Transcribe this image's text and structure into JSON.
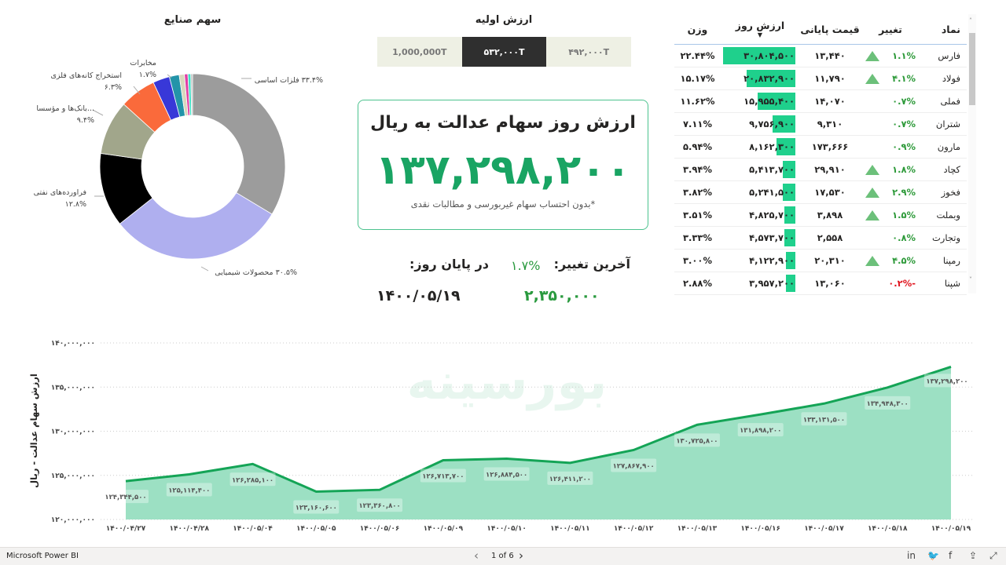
{
  "pie": {
    "title": "سهم صنایع",
    "labels": [
      {
        "name": "فلزات اساسی",
        "pct": "۳۳.۴%"
      },
      {
        "name": "محصولات شیمیایی",
        "pct": "۳۰.۵%"
      },
      {
        "name": "فراورده‌های نفتی",
        "pct": "۱۲.۸%"
      },
      {
        "name": "...بانک‌ها و مؤسسا",
        "pct": "۹.۴%"
      },
      {
        "name": "استخراج کانه‌های فلزی",
        "pct": "۶.۳%"
      },
      {
        "name": "مخابرات",
        "pct": "۱.۷%"
      }
    ]
  },
  "initial": {
    "title": "ارزش اولیه",
    "options": [
      "1,000,000T",
      "۵۳۲,۰۰۰T",
      "۴۹۲,۰۰۰T"
    ],
    "selected": 1
  },
  "card": {
    "title": "ارزش روز سهام عدالت به ریال",
    "value": "۱۳۷,۲۹۸,۲۰۰",
    "note": "*بدون احتساب سهام غیربورسی و مطالبات نقدی"
  },
  "kpi": {
    "last_change_label": "آخرین تغییر:",
    "last_change": "۱.۷%",
    "change_value": "۲,۳۵۰,۰۰۰",
    "end_of_day_label": "در پایان روز:",
    "date": "۱۴۰۰/۰۵/۱۹"
  },
  "table": {
    "headers": [
      "نماد",
      "تغییر",
      "قیمت پایانی",
      "ارزش روز",
      "وزن"
    ],
    "sort_column": "ارزش روز",
    "rows": [
      {
        "symbol": "فارس",
        "change": "۱.۱%",
        "up_arrow": true,
        "dir": "up",
        "price": "۱۳,۴۴۰",
        "value": "۳۰,۸۰۴,۵۰۰",
        "value_num": 30804500,
        "weight": "۲۲.۴۴%"
      },
      {
        "symbol": "فولاد",
        "change": "۴.۱%",
        "up_arrow": true,
        "dir": "up",
        "price": "۱۱,۷۹۰",
        "value": "۲۰,۸۳۲,۹۰۰",
        "value_num": 20832900,
        "weight": "۱۵.۱۷%"
      },
      {
        "symbol": "فملی",
        "change": "۰.۷%",
        "up_arrow": false,
        "dir": "up",
        "price": "۱۴,۰۷۰",
        "value": "۱۵,۹۵۵,۴۰۰",
        "value_num": 15955400,
        "weight": "۱۱.۶۲%"
      },
      {
        "symbol": "شتران",
        "change": "۰.۷%",
        "up_arrow": false,
        "dir": "up",
        "price": "۹,۳۱۰",
        "value": "۹,۷۵۶,۹۰۰",
        "value_num": 9756900,
        "weight": "۷.۱۱%"
      },
      {
        "symbol": "مارون",
        "change": "۰.۹%",
        "up_arrow": false,
        "dir": "up",
        "price": "۱۷۳,۶۶۶",
        "value": "۸,۱۶۲,۳۰۰",
        "value_num": 8162300,
        "weight": "۵.۹۴%"
      },
      {
        "symbol": "کچاد",
        "change": "۱.۸%",
        "up_arrow": true,
        "dir": "up",
        "price": "۲۹,۹۱۰",
        "value": "۵,۴۱۳,۷۰۰",
        "value_num": 5413700,
        "weight": "۳.۹۴%"
      },
      {
        "symbol": "فخوز",
        "change": "۲.۹%",
        "up_arrow": true,
        "dir": "up",
        "price": "۱۷,۵۳۰",
        "value": "۵,۲۴۱,۵۰۰",
        "value_num": 5241500,
        "weight": "۳.۸۲%"
      },
      {
        "symbol": "وبملت",
        "change": "۱.۵%",
        "up_arrow": true,
        "dir": "up",
        "price": "۳,۸۹۸",
        "value": "۴,۸۲۵,۷۰۰",
        "value_num": 4825700,
        "weight": "۳.۵۱%"
      },
      {
        "symbol": "وتجارت",
        "change": "۰.۸%",
        "up_arrow": false,
        "dir": "up",
        "price": "۲,۵۵۸",
        "value": "۴,۵۷۳,۷۰۰",
        "value_num": 4573700,
        "weight": "۳.۳۳%"
      },
      {
        "symbol": "رمپنا",
        "change": "۴.۵%",
        "up_arrow": true,
        "dir": "up",
        "price": "۲۰,۳۱۰",
        "value": "۴,۱۲۲,۹۰۰",
        "value_num": 4122900,
        "weight": "۳.۰۰%"
      },
      {
        "symbol": "شپنا",
        "change": "-۰.۲%",
        "up_arrow": false,
        "dir": "down",
        "price": "۱۳,۰۶۰",
        "value": "۳,۹۵۷,۲۰۰",
        "value_num": 3957200,
        "weight": "۲.۸۸%"
      }
    ]
  },
  "colors": {
    "accent": "#19a463",
    "area": "#9ce0c3",
    "line": "#14a456",
    "bar": "#1fd08c"
  },
  "watermark": "بورسینه",
  "chart_data": [
    {
      "type": "pie",
      "donut": true,
      "values": [
        33.4,
        30.5,
        12.8,
        9.4,
        6.3,
        2.9,
        1.7,
        0.9,
        0.6,
        0.5,
        0.3
      ],
      "colors": [
        "#9c9c9c",
        "#afafef",
        "#000000",
        "#a1a68b",
        "#fa6a3b",
        "#3838d8",
        "#2394a9",
        "#d9d7bd",
        "#e23fa6",
        "#3ee1c6",
        "#bdbdbd"
      ]
    },
    {
      "type": "area",
      "ylabel": "ارزش سهام عدالت - ریال",
      "ylim": [
        120000000,
        140000000
      ],
      "grid": true,
      "yticks": [
        140000000,
        135000000,
        130000000,
        125000000,
        120000000
      ],
      "ytick_labels": [
        "۱۴۰,۰۰۰,۰۰۰",
        "۱۳۵,۰۰۰,۰۰۰",
        "۱۳۰,۰۰۰,۰۰۰",
        "۱۲۵,۰۰۰,۰۰۰",
        "۱۲۰,۰۰۰,۰۰۰"
      ],
      "categories": [
        "۱۴۰۰/۰۴/۲۷",
        "۱۴۰۰/۰۴/۲۸",
        "۱۴۰۰/۰۵/۰۴",
        "۱۴۰۰/۰۵/۰۵",
        "۱۴۰۰/۰۵/۰۶",
        "۱۴۰۰/۰۵/۰۹",
        "۱۴۰۰/۰۵/۱۰",
        "۱۴۰۰/۰۵/۱۱",
        "۱۴۰۰/۰۵/۱۲",
        "۱۴۰۰/۰۵/۱۳",
        "۱۴۰۰/۰۵/۱۶",
        "۱۴۰۰/۰۵/۱۷",
        "۱۴۰۰/۰۵/۱۸",
        "۱۴۰۰/۰۵/۱۹"
      ],
      "values": [
        124344500,
        125114400,
        126285100,
        123160600,
        123360800,
        126713700,
        126884500,
        126411200,
        127867900,
        130725800,
        131898200,
        133131500,
        134948300,
        137298200
      ],
      "data_labels": [
        "۱۲۴,۳۴۴,۵۰۰",
        "۱۲۵,۱۱۴,۴۰۰",
        "۱۲۶,۲۸۵,۱۰۰",
        "۱۲۳,۱۶۰,۶۰۰",
        "۱۲۳,۳۶۰,۸۰۰",
        "۱۲۶,۷۱۳,۷۰۰",
        "۱۲۶,۸۸۴,۵۰۰",
        "۱۲۶,۴۱۱,۲۰۰",
        "۱۲۷,۸۶۷,۹۰۰",
        "۱۳۰,۷۲۵,۸۰۰",
        "۱۳۱,۸۹۸,۲۰۰",
        "۱۳۳,۱۳۱,۵۰۰",
        "۱۳۴,۹۴۸,۳۰۰",
        "۱۳۷,۲۹۸,۲۰۰"
      ]
    }
  ],
  "footer": {
    "app": "Microsoft Power BI",
    "page": "1 of 6",
    "prev": "‹",
    "next": "›"
  }
}
